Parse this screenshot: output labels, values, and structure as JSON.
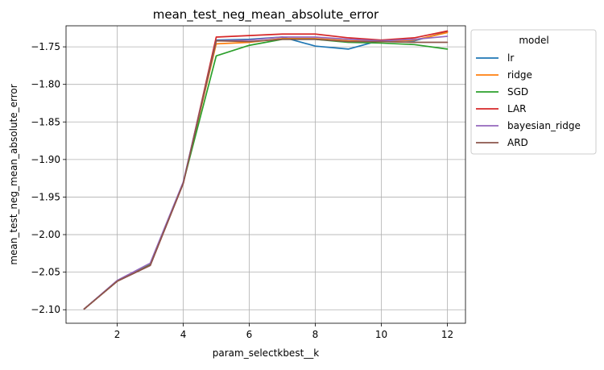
{
  "chart_data": {
    "type": "line",
    "title": "mean_test_neg_mean_absolute_error",
    "xlabel": "param_selectkbest__k",
    "ylabel": "mean_test_neg_mean_absolute_error",
    "xlim": [
      0.45,
      12.55
    ],
    "ylim": [
      -2.118,
      -1.722
    ],
    "xticks": [
      2,
      4,
      6,
      8,
      10,
      12
    ],
    "yticks": [
      -2.1,
      -2.05,
      -2.0,
      -1.95,
      -1.9,
      -1.85,
      -1.8,
      -1.75
    ],
    "ytick_labels": [
      "−2.10",
      "−2.05",
      "−2.00",
      "−1.95",
      "−1.90",
      "−1.85",
      "−1.80",
      "−1.75"
    ],
    "grid": true,
    "legend": {
      "title": "model",
      "placement": "outside-right-top"
    },
    "x": [
      1,
      2,
      3,
      4,
      5,
      6,
      7,
      8,
      9,
      10,
      11,
      12
    ],
    "series": [
      {
        "name": "lr",
        "color": "#1f77b4",
        "values": [
          -2.099,
          -2.062,
          -2.041,
          -1.931,
          -1.741,
          -1.74,
          -1.737,
          -1.749,
          -1.753,
          -1.741,
          -1.742,
          -1.73
        ]
      },
      {
        "name": "ridge",
        "color": "#ff7f0e",
        "values": [
          -2.099,
          -2.062,
          -2.04,
          -1.931,
          -1.746,
          -1.744,
          -1.739,
          -1.739,
          -1.742,
          -1.743,
          -1.741,
          -1.731
        ]
      },
      {
        "name": "SGD",
        "color": "#2ca02c",
        "values": [
          -2.099,
          -2.062,
          -2.04,
          -1.931,
          -1.762,
          -1.748,
          -1.74,
          -1.74,
          -1.744,
          -1.745,
          -1.747,
          -1.753
        ]
      },
      {
        "name": "LAR",
        "color": "#d62728",
        "values": [
          -2.099,
          -2.062,
          -2.041,
          -1.932,
          -1.737,
          -1.735,
          -1.733,
          -1.733,
          -1.738,
          -1.741,
          -1.738,
          -1.729
        ]
      },
      {
        "name": "bayesian_ridge",
        "color": "#9467bd",
        "values": [
          -2.099,
          -2.061,
          -2.038,
          -1.93,
          -1.742,
          -1.741,
          -1.737,
          -1.737,
          -1.74,
          -1.742,
          -1.74,
          -1.736
        ]
      },
      {
        "name": "ARD",
        "color": "#8c564b",
        "values": [
          -2.099,
          -2.062,
          -2.041,
          -1.932,
          -1.742,
          -1.743,
          -1.74,
          -1.74,
          -1.743,
          -1.743,
          -1.744,
          -1.744
        ]
      }
    ]
  }
}
